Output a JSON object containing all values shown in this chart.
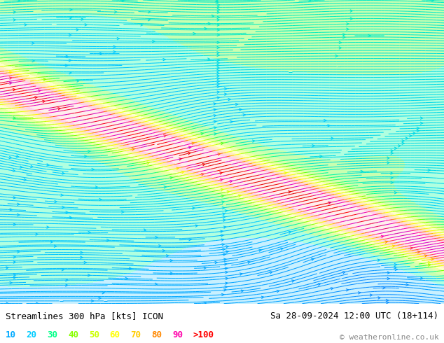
{
  "title_left": "Streamlines 300 hPa [kts] ICON",
  "title_right": "Sa 28-09-2024 12:00 UTC (18+114)",
  "copyright": "© weatheronline.co.uk",
  "legend_values": [
    "10",
    "20",
    "30",
    "40",
    "50",
    "60",
    "70",
    "80",
    "90",
    ">100"
  ],
  "legend_colors": [
    "#00AAFF",
    "#00CCFF",
    "#00FF88",
    "#88FF00",
    "#CCFF00",
    "#FFFF00",
    "#FFCC00",
    "#FF8800",
    "#FF00AA",
    "#FF0000"
  ],
  "figsize": [
    6.34,
    4.9
  ],
  "dpi": 100,
  "stream_cmap": [
    [
      0.0,
      "#5555FF"
    ],
    [
      0.1,
      "#0099FF"
    ],
    [
      0.2,
      "#00CCFF"
    ],
    [
      0.3,
      "#00FF99"
    ],
    [
      0.4,
      "#66FF00"
    ],
    [
      0.5,
      "#CCFF00"
    ],
    [
      0.58,
      "#FFFF00"
    ],
    [
      0.65,
      "#FFCC00"
    ],
    [
      0.72,
      "#FF6600"
    ],
    [
      0.8,
      "#FF00AA"
    ],
    [
      0.88,
      "#CC00CC"
    ],
    [
      0.94,
      "#FF0000"
    ],
    [
      1.0,
      "#CC0000"
    ]
  ],
  "speed_max_kts": 130,
  "bg_color": "#f0f0f0"
}
